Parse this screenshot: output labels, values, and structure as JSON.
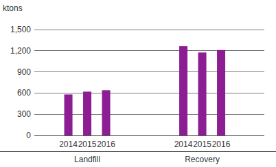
{
  "chart_data": {
    "type": "bar",
    "y_label": "ktons",
    "color": "#8c1d92",
    "grid": true,
    "ylim": [
      0,
      1500
    ],
    "yticks": [
      0,
      300,
      600,
      900,
      {
        "value": 1200,
        "label": "1,200"
      },
      {
        "value": 1500,
        "label": "1,500"
      }
    ],
    "groups": [
      {
        "name": "Landfill",
        "categories": [
          "2014",
          "2015",
          "2016"
        ],
        "values": [
          580,
          620,
          640
        ]
      },
      {
        "name": "Recovery",
        "categories": [
          "2014",
          "2015",
          "2016"
        ],
        "values": [
          1265,
          1175,
          1210
        ]
      }
    ]
  }
}
